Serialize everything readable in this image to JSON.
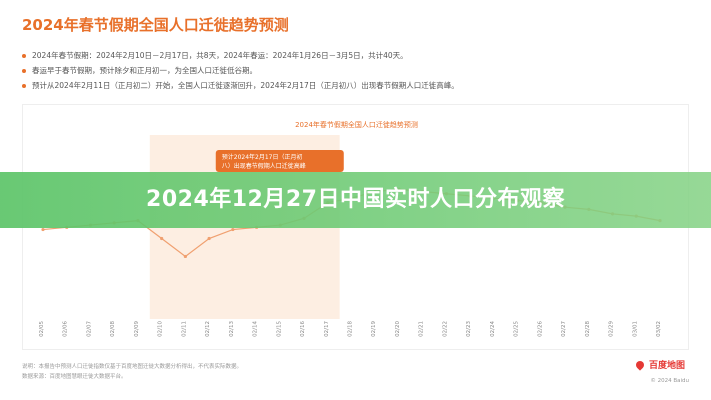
{
  "header": {
    "title": "2024年春节假期全国人口迁徙趋势预测",
    "bullets": [
      "2024年春节假期：2024年2月10日－2月17日，共8天，2024年春运：2024年1月26日－3月5日，共计40天。",
      "春运早于春节假期，预计除夕和正月初一，为全国人口迁徙低谷期。",
      "预计从2024年2月11日（正月初二）开始，全国人口迁徙逐渐回升，2024年2月17日（正月初八）出现春节假期人口迁徙高峰。"
    ]
  },
  "chart_data": {
    "type": "line",
    "title": "2024年春节假期全国人口迁徙趋势预测",
    "x": [
      "02/05",
      "02/06",
      "02/07",
      "02/08",
      "02/09",
      "02/10",
      "02/11",
      "02/12",
      "02/13",
      "02/14",
      "02/15",
      "02/16",
      "02/17",
      "02/18",
      "02/19",
      "02/20",
      "02/21",
      "02/22",
      "02/23",
      "02/24",
      "02/25",
      "02/26",
      "02/27",
      "02/28",
      "02/29",
      "03/01",
      "03/02"
    ],
    "series": [
      {
        "values": [
          56,
          57,
          58,
          59,
          60,
          52,
          44,
          52,
          56,
          57,
          58,
          61,
          68,
          70,
          73,
          74,
          73,
          72,
          71,
          70,
          69,
          68,
          66,
          65,
          63,
          62,
          60
        ]
      }
    ],
    "ylim": [
      0,
      100
    ],
    "grid": false,
    "annotation": "预计2024年2月17日（正月初八）出现春节假期人口迁徙高峰",
    "highlight_range": [
      "02/10",
      "02/17"
    ],
    "colors": {
      "line": "#f0a070",
      "highlight": "#fdeee2",
      "annotation_bg": "#e8702a",
      "point": "#e05a2a"
    }
  },
  "footer": {
    "lines": [
      "说明：本报告中预测人口迁徙指数仅基于百度地图迁徙大数据分析得出，不代表实际数据。",
      "数据来源：百度地图慧眼迁徙大数据平台。"
    ],
    "logo": "百度地图",
    "copyright": "© 2024 Baidu"
  },
  "overlay": {
    "title": "2024年12月27日中国实时人口分布观察"
  }
}
